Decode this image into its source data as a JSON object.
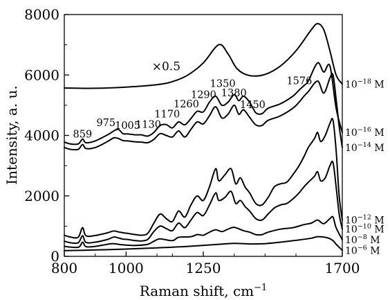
{
  "chart_data": {
    "type": "line",
    "xlabel": "Raman shift, cm",
    "xlabel_sup": "−1",
    "ylabel": "Intensity, a. u.",
    "xlim": [
      800,
      1700
    ],
    "ylim": [
      0,
      8000
    ],
    "grid": false,
    "x_ticks": [
      {
        "value": 800,
        "label": "800"
      },
      {
        "value": 1000,
        "label": "1000"
      },
      {
        "value": 1250,
        "label": "1250"
      },
      {
        "value": 1700,
        "label": "1700"
      }
    ],
    "x_minor_ticks": [
      900,
      1100,
      1150,
      1350,
      1450,
      1550
    ],
    "y_ticks": [
      {
        "value": 0,
        "label": "0"
      },
      {
        "value": 2000,
        "label": "2000"
      },
      {
        "value": 4000,
        "label": "4000"
      },
      {
        "value": 6000,
        "label": "6000"
      },
      {
        "value": 8000,
        "label": "8000"
      }
    ],
    "y_minor_ticks": [
      1000,
      3000,
      5000,
      7000
    ],
    "scale_annotation": {
      "text": "×0.5",
      "x": 1130,
      "y": 6150
    },
    "peak_annotations": [
      {
        "text": "859",
        "x": 859,
        "y": 3930
      },
      {
        "text": "975",
        "x": 935,
        "y": 4310
      },
      {
        "text": "1005",
        "x": 1005,
        "y": 4220
      },
      {
        "text": "1130",
        "x": 1072,
        "y": 4250
      },
      {
        "text": "1170",
        "x": 1133,
        "y": 4600
      },
      {
        "text": "1260",
        "x": 1195,
        "y": 4930
      },
      {
        "text": "1290",
        "x": 1251,
        "y": 5240
      },
      {
        "text": "1350",
        "x": 1313,
        "y": 5610
      },
      {
        "text": "1380",
        "x": 1349,
        "y": 5290
      },
      {
        "text": "1450",
        "x": 1410,
        "y": 4900
      },
      {
        "text": "1576",
        "x": 1561,
        "y": 5700
      }
    ],
    "series": [
      {
        "base": "10",
        "exp": "−18",
        "unit": "M",
        "label_y": 5700,
        "points": [
          [
            800,
            5570
          ],
          [
            900,
            5560
          ],
          [
            1000,
            5600
          ],
          [
            1100,
            5680
          ],
          [
            1150,
            5780
          ],
          [
            1200,
            6000
          ],
          [
            1250,
            6400
          ],
          [
            1300,
            7000
          ],
          [
            1330,
            6700
          ],
          [
            1360,
            6200
          ],
          [
            1400,
            5980
          ],
          [
            1450,
            6020
          ],
          [
            1500,
            6300
          ],
          [
            1550,
            6800
          ],
          [
            1600,
            7500
          ],
          [
            1620,
            7700
          ],
          [
            1640,
            7500
          ],
          [
            1660,
            6800
          ],
          [
            1680,
            6000
          ],
          [
            1700,
            5700
          ]
        ]
      },
      {
        "base": "10",
        "exp": "−16",
        "unit": "M",
        "label_y": 4100,
        "points": [
          [
            800,
            3780
          ],
          [
            820,
            3720
          ],
          [
            845,
            3720
          ],
          [
            859,
            3880
          ],
          [
            870,
            3760
          ],
          [
            900,
            3820
          ],
          [
            940,
            4020
          ],
          [
            960,
            4150
          ],
          [
            975,
            4200
          ],
          [
            990,
            4060
          ],
          [
            1005,
            4050
          ],
          [
            1030,
            4020
          ],
          [
            1050,
            4020
          ],
          [
            1070,
            3980
          ],
          [
            1090,
            4100
          ],
          [
            1110,
            4330
          ],
          [
            1130,
            4360
          ],
          [
            1150,
            4250
          ],
          [
            1170,
            4450
          ],
          [
            1190,
            4350
          ],
          [
            1210,
            4560
          ],
          [
            1230,
            4800
          ],
          [
            1250,
            4780
          ],
          [
            1270,
            5100
          ],
          [
            1290,
            5300
          ],
          [
            1310,
            5000
          ],
          [
            1330,
            5100
          ],
          [
            1350,
            5350
          ],
          [
            1365,
            5150
          ],
          [
            1380,
            5300
          ],
          [
            1400,
            5100
          ],
          [
            1420,
            4750
          ],
          [
            1440,
            4720
          ],
          [
            1460,
            4900
          ],
          [
            1500,
            5050
          ],
          [
            1540,
            5300
          ],
          [
            1560,
            5500
          ],
          [
            1576,
            5650
          ],
          [
            1590,
            5800
          ],
          [
            1620,
            6400
          ],
          [
            1640,
            6100
          ],
          [
            1660,
            6300
          ],
          [
            1680,
            4900
          ],
          [
            1700,
            4100
          ]
        ]
      },
      {
        "base": "10",
        "exp": "−14",
        "unit": "M",
        "label_y": 3600,
        "points": [
          [
            800,
            3600
          ],
          [
            820,
            3540
          ],
          [
            845,
            3540
          ],
          [
            859,
            3700
          ],
          [
            870,
            3570
          ],
          [
            900,
            3600
          ],
          [
            940,
            3800
          ],
          [
            960,
            3920
          ],
          [
            975,
            3900
          ],
          [
            990,
            3830
          ],
          [
            1005,
            3820
          ],
          [
            1030,
            3790
          ],
          [
            1050,
            3780
          ],
          [
            1070,
            3760
          ],
          [
            1090,
            3870
          ],
          [
            1110,
            4060
          ],
          [
            1130,
            4000
          ],
          [
            1150,
            3950
          ],
          [
            1170,
            4150
          ],
          [
            1190,
            3950
          ],
          [
            1210,
            4200
          ],
          [
            1230,
            4450
          ],
          [
            1250,
            4380
          ],
          [
            1270,
            4650
          ],
          [
            1290,
            4950
          ],
          [
            1310,
            4580
          ],
          [
            1330,
            4700
          ],
          [
            1350,
            5000
          ],
          [
            1365,
            4700
          ],
          [
            1380,
            4850
          ],
          [
            1400,
            4600
          ],
          [
            1420,
            4350
          ],
          [
            1440,
            4330
          ],
          [
            1460,
            4500
          ],
          [
            1500,
            4650
          ],
          [
            1540,
            4900
          ],
          [
            1560,
            5100
          ],
          [
            1576,
            5300
          ],
          [
            1590,
            5450
          ],
          [
            1620,
            5800
          ],
          [
            1640,
            5400
          ],
          [
            1660,
            5900
          ],
          [
            1670,
            6000
          ],
          [
            1680,
            5200
          ],
          [
            1690,
            4300
          ],
          [
            1700,
            3600
          ]
        ]
      },
      {
        "base": "10",
        "exp": "−12",
        "unit": "M",
        "label_y": 1200,
        "points": [
          [
            800,
            700
          ],
          [
            820,
            640
          ],
          [
            845,
            630
          ],
          [
            859,
            950
          ],
          [
            870,
            680
          ],
          [
            900,
            690
          ],
          [
            940,
            780
          ],
          [
            960,
            840
          ],
          [
            975,
            810
          ],
          [
            990,
            780
          ],
          [
            1005,
            760
          ],
          [
            1030,
            720
          ],
          [
            1050,
            700
          ],
          [
            1070,
            760
          ],
          [
            1090,
            1100
          ],
          [
            1110,
            1400
          ],
          [
            1130,
            1250
          ],
          [
            1150,
            1150
          ],
          [
            1170,
            1500
          ],
          [
            1190,
            1300
          ],
          [
            1210,
            1700
          ],
          [
            1230,
            2000
          ],
          [
            1250,
            1850
          ],
          [
            1270,
            2300
          ],
          [
            1290,
            2900
          ],
          [
            1300,
            2500
          ],
          [
            1320,
            2700
          ],
          [
            1340,
            2900
          ],
          [
            1355,
            2400
          ],
          [
            1370,
            2600
          ],
          [
            1385,
            2300
          ],
          [
            1400,
            2100
          ],
          [
            1420,
            1750
          ],
          [
            1440,
            1700
          ],
          [
            1460,
            1950
          ],
          [
            1480,
            2300
          ],
          [
            1500,
            2400
          ],
          [
            1520,
            2450
          ],
          [
            1540,
            2700
          ],
          [
            1560,
            3000
          ],
          [
            1576,
            3300
          ],
          [
            1590,
            3600
          ],
          [
            1610,
            3900
          ],
          [
            1620,
            4100
          ],
          [
            1630,
            3800
          ],
          [
            1645,
            4000
          ],
          [
            1660,
            4400
          ],
          [
            1670,
            4500
          ],
          [
            1680,
            3500
          ],
          [
            1690,
            2000
          ],
          [
            1700,
            1200
          ]
        ]
      },
      {
        "base": "10",
        "exp": "−10",
        "unit": "M",
        "label_y": 900,
        "points": [
          [
            800,
            500
          ],
          [
            820,
            450
          ],
          [
            845,
            450
          ],
          [
            859,
            680
          ],
          [
            870,
            460
          ],
          [
            900,
            470
          ],
          [
            940,
            560
          ],
          [
            960,
            640
          ],
          [
            975,
            610
          ],
          [
            990,
            570
          ],
          [
            1005,
            560
          ],
          [
            1030,
            520
          ],
          [
            1050,
            510
          ],
          [
            1070,
            560
          ],
          [
            1090,
            820
          ],
          [
            1110,
            1000
          ],
          [
            1130,
            920
          ],
          [
            1150,
            850
          ],
          [
            1170,
            1100
          ],
          [
            1190,
            950
          ],
          [
            1210,
            1200
          ],
          [
            1230,
            1450
          ],
          [
            1250,
            1350
          ],
          [
            1270,
            1700
          ],
          [
            1290,
            2100
          ],
          [
            1300,
            1850
          ],
          [
            1320,
            1950
          ],
          [
            1340,
            2150
          ],
          [
            1355,
            1750
          ],
          [
            1370,
            1850
          ],
          [
            1385,
            1650
          ],
          [
            1400,
            1500
          ],
          [
            1420,
            1250
          ],
          [
            1440,
            1200
          ],
          [
            1460,
            1400
          ],
          [
            1480,
            1600
          ],
          [
            1500,
            1700
          ],
          [
            1520,
            1750
          ],
          [
            1540,
            1900
          ],
          [
            1560,
            2100
          ],
          [
            1576,
            2300
          ],
          [
            1590,
            2450
          ],
          [
            1610,
            2650
          ],
          [
            1620,
            2800
          ],
          [
            1630,
            2500
          ],
          [
            1645,
            2600
          ],
          [
            1660,
            3000
          ],
          [
            1670,
            3100
          ],
          [
            1680,
            2300
          ],
          [
            1690,
            1400
          ],
          [
            1700,
            900
          ]
        ]
      },
      {
        "base": "10",
        "exp": "−8",
        "unit": "M",
        "label_y": 550,
        "points": [
          [
            800,
            330
          ],
          [
            845,
            300
          ],
          [
            859,
            470
          ],
          [
            870,
            320
          ],
          [
            900,
            330
          ],
          [
            940,
            400
          ],
          [
            960,
            420
          ],
          [
            990,
            380
          ],
          [
            1030,
            360
          ],
          [
            1070,
            400
          ],
          [
            1090,
            500
          ],
          [
            1110,
            580
          ],
          [
            1150,
            520
          ],
          [
            1170,
            630
          ],
          [
            1210,
            650
          ],
          [
            1230,
            720
          ],
          [
            1250,
            700
          ],
          [
            1270,
            800
          ],
          [
            1290,
            880
          ],
          [
            1310,
            820
          ],
          [
            1330,
            900
          ],
          [
            1350,
            960
          ],
          [
            1380,
            850
          ],
          [
            1400,
            800
          ],
          [
            1420,
            720
          ],
          [
            1440,
            720
          ],
          [
            1460,
            800
          ],
          [
            1500,
            900
          ],
          [
            1540,
            950
          ],
          [
            1576,
            1050
          ],
          [
            1600,
            1100
          ],
          [
            1620,
            1200
          ],
          [
            1640,
            1080
          ],
          [
            1660,
            1250
          ],
          [
            1670,
            1300
          ],
          [
            1680,
            950
          ],
          [
            1700,
            550
          ]
        ]
      },
      {
        "base": "10",
        "exp": "−6",
        "unit": "M",
        "label_y": 200,
        "points": [
          [
            800,
            190
          ],
          [
            900,
            210
          ],
          [
            1000,
            240
          ],
          [
            1100,
            280
          ],
          [
            1200,
            330
          ],
          [
            1300,
            400
          ],
          [
            1350,
            430
          ],
          [
            1400,
            410
          ],
          [
            1450,
            420
          ],
          [
            1500,
            470
          ],
          [
            1550,
            530
          ],
          [
            1600,
            600
          ],
          [
            1620,
            650
          ],
          [
            1650,
            620
          ],
          [
            1670,
            520
          ],
          [
            1680,
            400
          ],
          [
            1700,
            200
          ]
        ]
      }
    ]
  }
}
